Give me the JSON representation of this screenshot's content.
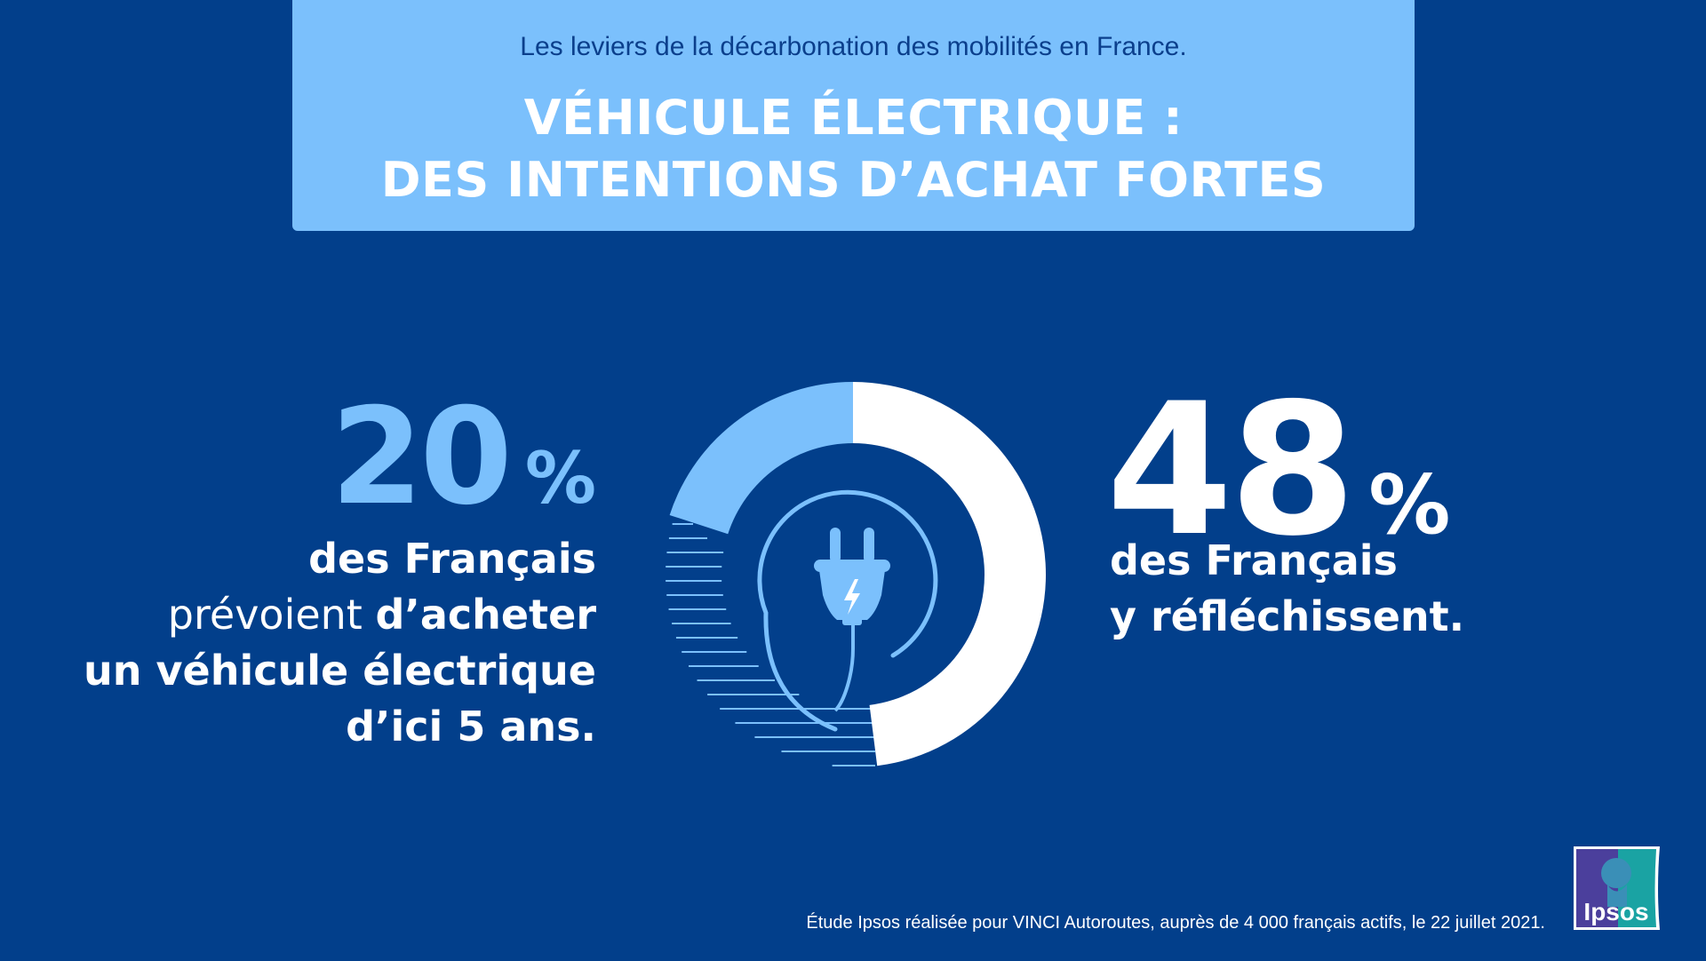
{
  "header": {
    "subtitle": "Les leviers de la décarbonation des mobilités en France.",
    "title_line1": "VÉHICULE ÉLECTRIQUE :",
    "title_line2": "DES INTENTIONS D’ACHAT FORTES"
  },
  "left_stat": {
    "value": "20",
    "unit": "%",
    "line1": "des Français",
    "line2_light": "prévoient ",
    "line2_bold": "d’acheter",
    "line3": "un véhicule électrique",
    "line4": "d’ici 5 ans."
  },
  "right_stat": {
    "value": "48",
    "unit": "%",
    "line1": "des Français",
    "line2": "y réfléchissent."
  },
  "donut": {
    "segments": [
      {
        "value": 20,
        "color": "#7bc0fc",
        "direction": "counterclockwise"
      },
      {
        "value": 48,
        "color": "#ffffff",
        "direction": "clockwise"
      }
    ],
    "remainder_style": "horizontal-stripes",
    "center_icon": "electric-plug-icon"
  },
  "footer": {
    "source": "Étude Ipsos réalisée pour VINCI Autoroutes, auprès de 4 000 français actifs, le 22 juillet 2021."
  },
  "logo": {
    "text": "Ipsos"
  },
  "colors": {
    "background": "#023f8b",
    "accent": "#7bc0fc",
    "white": "#ffffff"
  }
}
